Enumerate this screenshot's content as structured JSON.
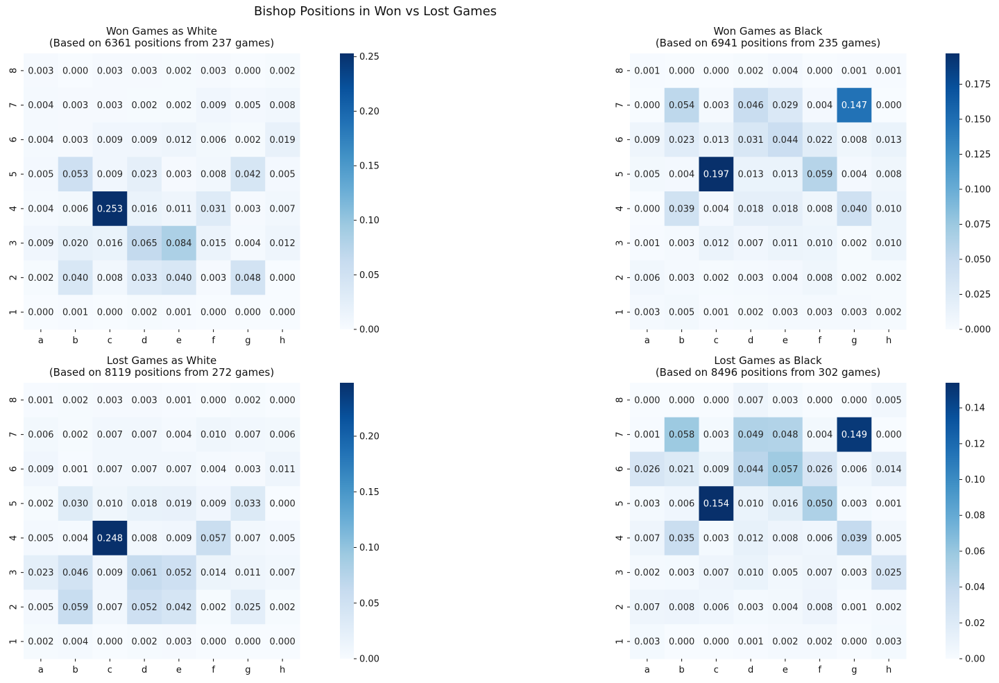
{
  "suptitle": "Bishop Positions in Won vs Lost Games",
  "colormap": {
    "name": "Blues",
    "stops": [
      "#f7fbff",
      "#deebf7",
      "#c6dbef",
      "#9ecae1",
      "#6baed6",
      "#4292c6",
      "#2171b5",
      "#08519c",
      "#08306b"
    ]
  },
  "chart_data": [
    {
      "type": "heatmap",
      "title": [
        "Won Games as White",
        "(Based on 6361 positions from 237 games)"
      ],
      "x_ticks": [
        "a",
        "b",
        "c",
        "d",
        "e",
        "f",
        "g",
        "h"
      ],
      "y_ticks": [
        "8",
        "7",
        "6",
        "5",
        "4",
        "3",
        "2",
        "1"
      ],
      "values": [
        [
          0.003,
          0.0,
          0.003,
          0.003,
          0.002,
          0.003,
          0.0,
          0.002
        ],
        [
          0.004,
          0.003,
          0.003,
          0.002,
          0.002,
          0.009,
          0.005,
          0.008
        ],
        [
          0.004,
          0.003,
          0.009,
          0.009,
          0.012,
          0.006,
          0.002,
          0.019
        ],
        [
          0.005,
          0.053,
          0.009,
          0.023,
          0.003,
          0.008,
          0.042,
          0.005
        ],
        [
          0.004,
          0.006,
          0.253,
          0.016,
          0.011,
          0.031,
          0.003,
          0.007
        ],
        [
          0.009,
          0.02,
          0.016,
          0.065,
          0.084,
          0.015,
          0.004,
          0.012
        ],
        [
          0.002,
          0.04,
          0.008,
          0.033,
          0.04,
          0.003,
          0.048,
          0.0
        ],
        [
          0.0,
          0.001,
          0.0,
          0.002,
          0.001,
          0.0,
          0.0,
          0.0
        ]
      ],
      "vmin": 0,
      "vmax": 0.253,
      "colorbar_ticks": [
        "0.00",
        "0.05",
        "0.10",
        "0.15",
        "0.20",
        "0.25"
      ]
    },
    {
      "type": "heatmap",
      "title": [
        "Won Games as Black",
        "(Based on 6941 positions from 235 games)"
      ],
      "x_ticks": [
        "a",
        "b",
        "c",
        "d",
        "e",
        "f",
        "g",
        "h"
      ],
      "y_ticks": [
        "8",
        "7",
        "6",
        "5",
        "4",
        "3",
        "2",
        "1"
      ],
      "values": [
        [
          0.001,
          0.0,
          0.0,
          0.002,
          0.004,
          0.0,
          0.001,
          0.001
        ],
        [
          0.0,
          0.054,
          0.003,
          0.046,
          0.029,
          0.004,
          0.147,
          0.0
        ],
        [
          0.009,
          0.023,
          0.013,
          0.031,
          0.044,
          0.022,
          0.008,
          0.013
        ],
        [
          0.005,
          0.004,
          0.197,
          0.013,
          0.013,
          0.059,
          0.004,
          0.008
        ],
        [
          0.0,
          0.039,
          0.004,
          0.018,
          0.018,
          0.008,
          0.04,
          0.01
        ],
        [
          0.001,
          0.003,
          0.012,
          0.007,
          0.011,
          0.01,
          0.002,
          0.01
        ],
        [
          0.006,
          0.003,
          0.002,
          0.003,
          0.004,
          0.008,
          0.002,
          0.002
        ],
        [
          0.003,
          0.005,
          0.001,
          0.002,
          0.003,
          0.003,
          0.003,
          0.002
        ]
      ],
      "vmin": 0,
      "vmax": 0.197,
      "colorbar_ticks": [
        "0.000",
        "0.025",
        "0.050",
        "0.075",
        "0.100",
        "0.125",
        "0.150",
        "0.175"
      ]
    },
    {
      "type": "heatmap",
      "title": [
        "Lost Games as White",
        "(Based on 8119 positions from 272 games)"
      ],
      "x_ticks": [
        "a",
        "b",
        "c",
        "d",
        "e",
        "f",
        "g",
        "h"
      ],
      "y_ticks": [
        "8",
        "7",
        "6",
        "5",
        "4",
        "3",
        "2",
        "1"
      ],
      "values": [
        [
          0.001,
          0.002,
          0.003,
          0.003,
          0.001,
          0.0,
          0.002,
          0.0
        ],
        [
          0.006,
          0.002,
          0.007,
          0.007,
          0.004,
          0.01,
          0.007,
          0.006
        ],
        [
          0.009,
          0.001,
          0.007,
          0.007,
          0.007,
          0.004,
          0.003,
          0.011
        ],
        [
          0.002,
          0.03,
          0.01,
          0.018,
          0.019,
          0.009,
          0.033,
          0.0
        ],
        [
          0.005,
          0.004,
          0.248,
          0.008,
          0.009,
          0.057,
          0.007,
          0.005
        ],
        [
          0.023,
          0.046,
          0.009,
          0.061,
          0.052,
          0.014,
          0.011,
          0.007
        ],
        [
          0.005,
          0.059,
          0.007,
          0.052,
          0.042,
          0.002,
          0.025,
          0.002
        ],
        [
          0.002,
          0.004,
          0.0,
          0.002,
          0.003,
          0.0,
          0.0,
          0.0
        ]
      ],
      "vmin": 0,
      "vmax": 0.248,
      "colorbar_ticks": [
        "0.00",
        "0.05",
        "0.10",
        "0.15",
        "0.20"
      ]
    },
    {
      "type": "heatmap",
      "title": [
        "Lost Games as Black",
        "(Based on 8496 positions from 302 games)"
      ],
      "x_ticks": [
        "a",
        "b",
        "c",
        "d",
        "e",
        "f",
        "g",
        "h"
      ],
      "y_ticks": [
        "8",
        "7",
        "6",
        "5",
        "4",
        "3",
        "2",
        "1"
      ],
      "values": [
        [
          0.0,
          0.0,
          0.0,
          0.007,
          0.003,
          0.0,
          0.0,
          0.005
        ],
        [
          0.001,
          0.058,
          0.003,
          0.049,
          0.048,
          0.004,
          0.149,
          0.0
        ],
        [
          0.026,
          0.021,
          0.009,
          0.044,
          0.057,
          0.026,
          0.006,
          0.014
        ],
        [
          0.003,
          0.006,
          0.154,
          0.01,
          0.016,
          0.05,
          0.003,
          0.001
        ],
        [
          0.007,
          0.035,
          0.003,
          0.012,
          0.008,
          0.006,
          0.039,
          0.005
        ],
        [
          0.002,
          0.003,
          0.007,
          0.01,
          0.005,
          0.007,
          0.003,
          0.025
        ],
        [
          0.007,
          0.008,
          0.006,
          0.003,
          0.004,
          0.008,
          0.001,
          0.002
        ],
        [
          0.003,
          0.0,
          0.0,
          0.001,
          0.002,
          0.002,
          0.0,
          0.003
        ]
      ],
      "vmin": 0,
      "vmax": 0.154,
      "colorbar_ticks": [
        "0.00",
        "0.02",
        "0.04",
        "0.06",
        "0.08",
        "0.10",
        "0.12",
        "0.14"
      ]
    }
  ]
}
